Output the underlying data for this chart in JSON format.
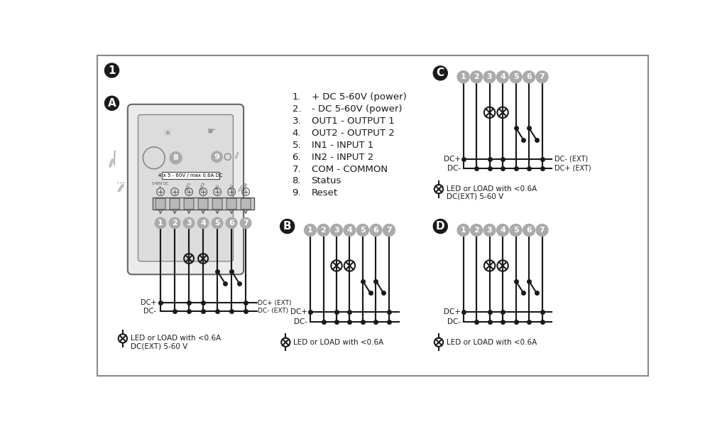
{
  "bg_color": "#ffffff",
  "border_color": "#aaaaaa",
  "line_color": "#1a1a1a",
  "circle_fill": "#aaaaaa",
  "dark_circle_fill": "#1a1a1a",
  "numbered_list_items": [
    "+ DC 5-60V (power)",
    "- DC 5-60V (power)",
    "OUT1 - OUTPUT 1",
    "OUT2 - OUTPUT 2",
    "IN1 - INPUT 1",
    "IN2 - INPUT 2",
    "COM - COMMON",
    "Status",
    "Reset"
  ]
}
